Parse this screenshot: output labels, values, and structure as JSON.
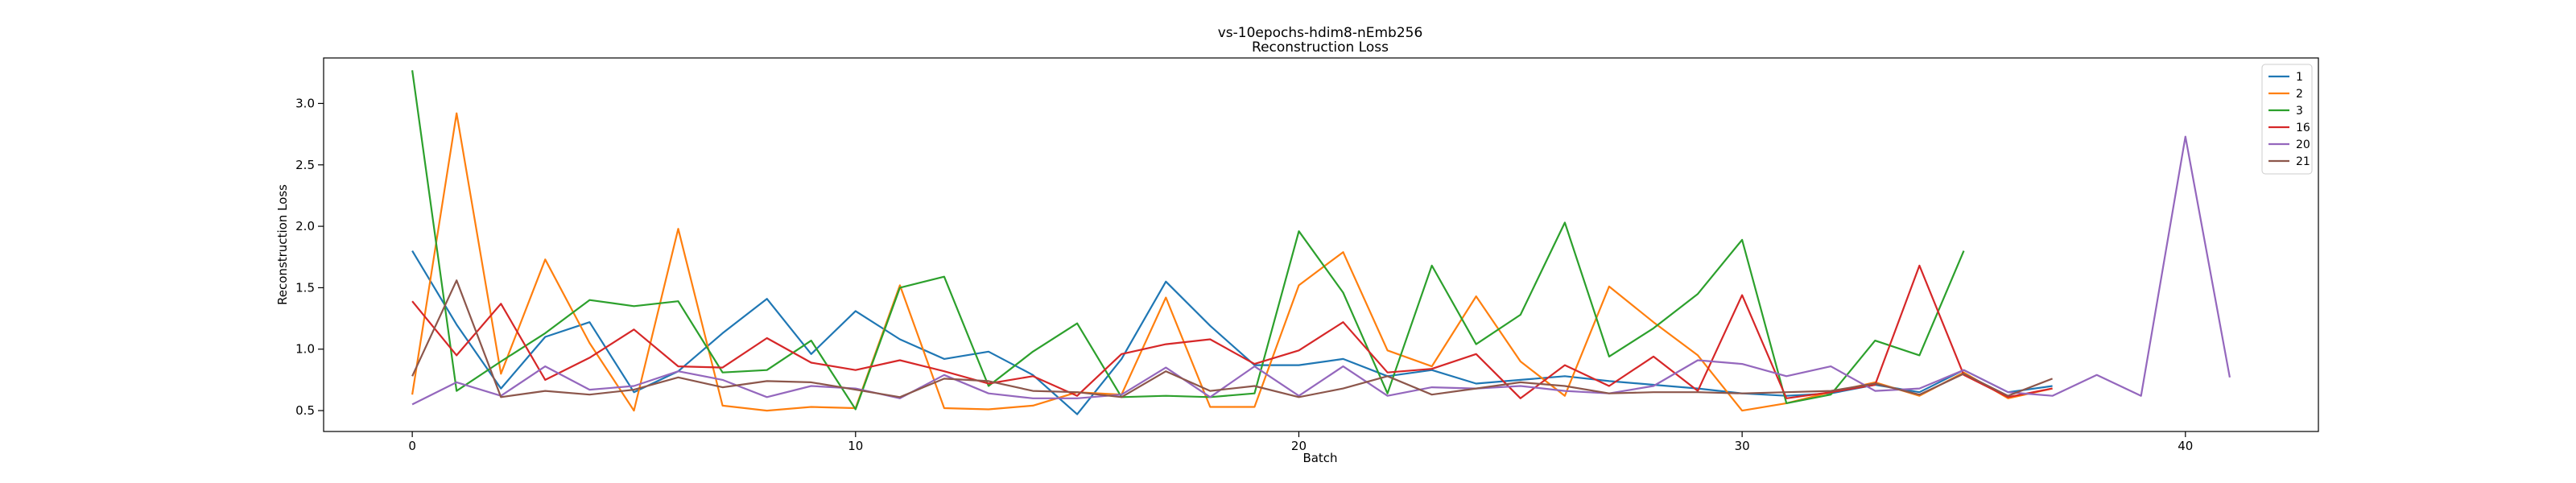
{
  "chart_data": {
    "type": "line",
    "title": "vs-10epochs-hdim8-nEmb256",
    "subtitle": "Reconstruction Loss",
    "xlabel": "Batch",
    "ylabel": "Reconstruction Loss",
    "xlim": [
      -2,
      43
    ],
    "ylim": [
      0.33,
      3.37
    ],
    "xticks": [
      0,
      10,
      20,
      30,
      40
    ],
    "yticks": [
      0.5,
      1.0,
      1.5,
      2.0,
      2.5,
      3.0
    ],
    "grid": false,
    "legend_position": "top-right",
    "series": [
      {
        "name": "1",
        "color": "#1f77b4",
        "values": [
          1.8,
          1.2,
          0.68,
          1.1,
          1.22,
          0.65,
          0.82,
          1.13,
          1.41,
          0.96,
          1.31,
          1.08,
          0.92,
          0.98,
          0.79,
          0.47,
          0.92,
          1.55,
          1.19,
          0.87,
          0.87,
          0.92,
          0.78,
          0.83,
          0.72,
          0.75,
          0.78,
          0.74,
          0.71,
          0.68,
          0.64,
          0.62,
          0.64,
          0.71,
          0.65,
          0.83,
          0.65,
          0.7
        ]
      },
      {
        "name": "2",
        "color": "#ff7f0e",
        "values": [
          0.63,
          2.92,
          0.8,
          1.73,
          1.05,
          0.5,
          1.98,
          0.54,
          0.5,
          0.53,
          0.52,
          1.52,
          0.52,
          0.51,
          0.54,
          0.65,
          0.63,
          1.42,
          0.53,
          0.53,
          1.52,
          1.79,
          0.99,
          0.86,
          1.43,
          0.9,
          0.62,
          1.51,
          1.22,
          0.95,
          0.5,
          0.56,
          0.65,
          0.73,
          0.62,
          0.81,
          0.6,
          0.68
        ]
      },
      {
        "name": "3",
        "color": "#2ca02c",
        "values": [
          3.27,
          0.66,
          0.9,
          1.13,
          1.4,
          1.35,
          1.39,
          0.81,
          0.83,
          1.07,
          0.51,
          1.5,
          1.59,
          0.7,
          0.98,
          1.21,
          0.61,
          0.62,
          0.61,
          0.64,
          1.96,
          1.46,
          0.64,
          1.68,
          1.04,
          1.28,
          2.03,
          0.94,
          1.17,
          1.45,
          1.89,
          0.56,
          0.63,
          1.07,
          0.95,
          1.8
        ]
      },
      {
        "name": "16",
        "color": "#d62728",
        "values": [
          1.39,
          0.95,
          1.37,
          0.75,
          0.93,
          1.16,
          0.86,
          0.85,
          1.09,
          0.89,
          0.83,
          0.91,
          0.82,
          0.72,
          0.78,
          0.62,
          0.96,
          1.04,
          1.08,
          0.88,
          0.99,
          1.22,
          0.81,
          0.84,
          0.96,
          0.6,
          0.87,
          0.7,
          0.94,
          0.66,
          1.44,
          0.6,
          0.65,
          0.71,
          1.68,
          0.79,
          0.61,
          0.68
        ]
      },
      {
        "name": "20",
        "color": "#9467bd",
        "values": [
          0.55,
          0.73,
          0.62,
          0.86,
          0.67,
          0.7,
          0.82,
          0.75,
          0.61,
          0.7,
          0.68,
          0.6,
          0.79,
          0.64,
          0.6,
          0.6,
          0.63,
          0.85,
          0.61,
          0.86,
          0.62,
          0.86,
          0.62,
          0.69,
          0.68,
          0.7,
          0.66,
          0.64,
          0.7,
          0.91,
          0.88,
          0.78,
          0.86,
          0.66,
          0.68,
          0.83,
          0.65,
          0.62,
          0.79,
          0.62,
          2.73,
          0.77
        ]
      },
      {
        "name": "21",
        "color": "#8c564b",
        "values": [
          0.78,
          1.56,
          0.61,
          0.66,
          0.63,
          0.67,
          0.77,
          0.69,
          0.74,
          0.73,
          0.67,
          0.61,
          0.76,
          0.74,
          0.66,
          0.65,
          0.61,
          0.82,
          0.66,
          0.7,
          0.61,
          0.68,
          0.78,
          0.63,
          0.68,
          0.73,
          0.7,
          0.64,
          0.65,
          0.65,
          0.64,
          0.65,
          0.66,
          0.72,
          0.63,
          0.8,
          0.62,
          0.76
        ]
      }
    ]
  }
}
